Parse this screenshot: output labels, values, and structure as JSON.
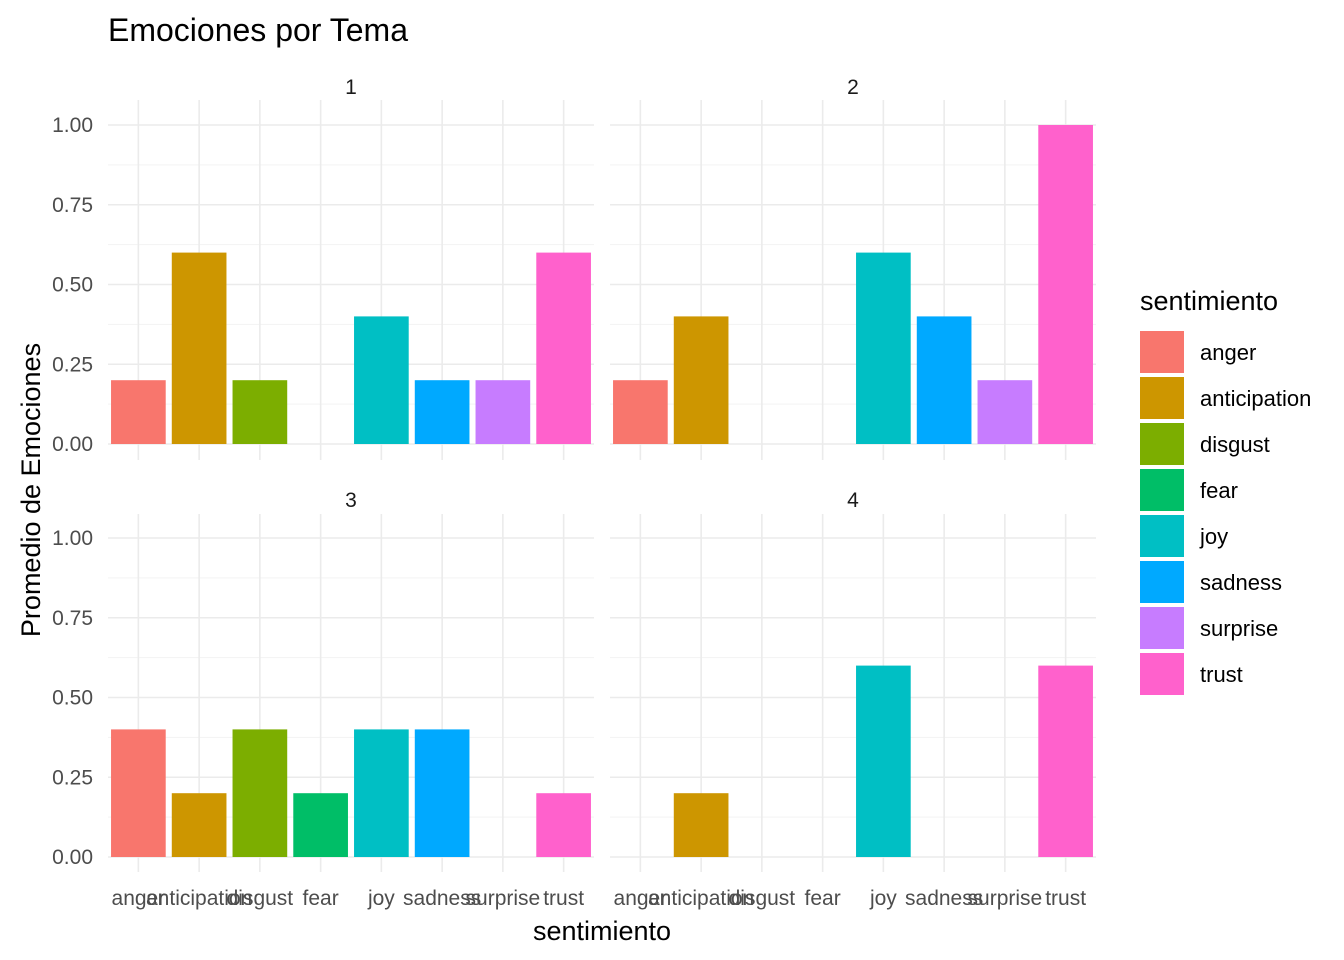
{
  "chart_data": {
    "type": "bar",
    "title": "Emociones por Tema",
    "xlabel": "sentimiento",
    "ylabel": "Promedio de Emociones",
    "categories": [
      "anger",
      "anticipation",
      "disgust",
      "fear",
      "joy",
      "sadness",
      "surprise",
      "trust"
    ],
    "ylim": [
      0,
      1.05
    ],
    "yticks": [
      "0.00",
      "0.25",
      "0.50",
      "0.75",
      "1.00"
    ],
    "ytick_values": [
      0,
      0.25,
      0.5,
      0.75,
      1.0
    ],
    "colors": {
      "anger": "#F8766D",
      "anticipation": "#CD9600",
      "disgust": "#7CAE00",
      "fear": "#00BE67",
      "joy": "#00BFC4",
      "sadness": "#00A9FF",
      "surprise": "#C77CFF",
      "trust": "#FF61CC"
    },
    "facets": [
      {
        "name": "1",
        "values": [
          0.2,
          0.6,
          0.2,
          0,
          0.4,
          0.2,
          0.2,
          0.6
        ]
      },
      {
        "name": "2",
        "values": [
          0.2,
          0.4,
          0,
          0,
          0.6,
          0.4,
          0.2,
          1.0
        ]
      },
      {
        "name": "3",
        "values": [
          0.4,
          0.2,
          0.4,
          0.2,
          0.4,
          0.4,
          0,
          0.2
        ]
      },
      {
        "name": "4",
        "values": [
          0,
          0.2,
          0,
          0,
          0.6,
          0,
          0,
          0.6
        ]
      }
    ],
    "legend": {
      "title": "sentimiento",
      "position": "right",
      "items": [
        "anger",
        "anticipation",
        "disgust",
        "fear",
        "joy",
        "sadness",
        "surprise",
        "trust"
      ]
    },
    "grid": true
  }
}
